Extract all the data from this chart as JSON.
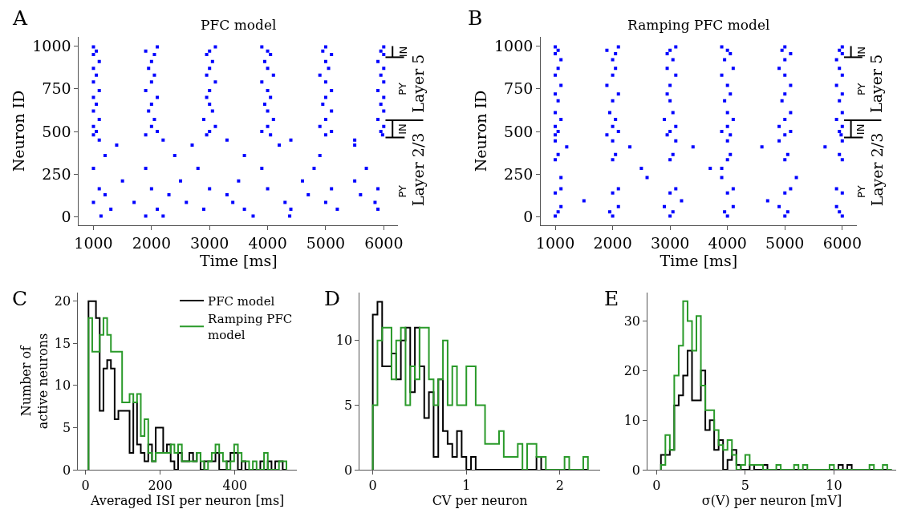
{
  "chart_data": [
    {
      "type": "scatter",
      "title": "PFC model",
      "xlabel": "Time [ms]",
      "ylabel": "Neuron ID",
      "xlim": [
        750,
        6250
      ],
      "ylim": [
        -50,
        1055
      ],
      "xticks": [
        1000,
        2000,
        3000,
        4000,
        5000,
        6000
      ],
      "yticks": [
        0,
        250,
        500,
        750,
        1000
      ],
      "marker": "square",
      "grid": false,
      "legend": false,
      "annotations": [
        "A",
        "IN",
        "PY",
        "IN",
        "PY",
        "Layer 5",
        "Layer 2/3"
      ],
      "series": [
        {
          "color": "#0000ff",
          "x": [
            1130,
            1900,
            2200,
            3750,
            4380
          ],
          "values": [
            5,
            5,
            5,
            5,
            5
          ]
        },
        {
          "color": "#0000ff",
          "x": [
            1300,
            2100,
            2900,
            3600,
            4400,
            5200,
            5900
          ],
          "values": [
            45,
            45,
            45,
            45,
            45,
            45,
            45
          ]
        },
        {
          "color": "#0000ff",
          "x": [
            1000,
            1700,
            2600,
            3400,
            4300,
            5000,
            5850
          ],
          "values": [
            85,
            85,
            85,
            85,
            85,
            85,
            85
          ]
        },
        {
          "color": "#0000ff",
          "x": [
            1200,
            2300,
            3300,
            4700,
            5600
          ],
          "values": [
            130,
            130,
            130,
            130,
            130
          ]
        },
        {
          "color": "#0000ff",
          "x": [
            1100,
            2000,
            3000,
            4000,
            5100,
            5900
          ],
          "values": [
            165,
            165,
            165,
            165,
            165,
            165
          ]
        },
        {
          "color": "#0000ff",
          "x": [
            1500,
            2500,
            3500,
            4600,
            5500
          ],
          "values": [
            210,
            210,
            210,
            210,
            210
          ]
        },
        {
          "color": "#0000ff",
          "x": [
            1000,
            1900,
            2800,
            3900,
            4800,
            5700
          ],
          "values": [
            285,
            285,
            285,
            285,
            285,
            285
          ]
        },
        {
          "color": "#0000ff",
          "x": [
            1200,
            2400,
            3600,
            4900
          ],
          "values": [
            360,
            360,
            360,
            360
          ]
        },
        {
          "color": "#0000ff",
          "x": [
            1400,
            2700,
            4200,
            5500
          ],
          "values": [
            420,
            420,
            420,
            420
          ]
        },
        {
          "color": "#0000ff",
          "x": [
            1100,
            2200,
            3300,
            4400,
            5500
          ],
          "values": [
            450,
            450,
            450,
            450,
            450
          ]
        },
        {
          "color": "#0000ff",
          "x": [
            1000,
            1900,
            2950,
            4050,
            5000,
            5980
          ],
          "values": [
            480,
            480,
            480,
            480,
            480,
            480
          ]
        },
        {
          "color": "#0000ff",
          "x": [
            1050,
            2100,
            3000,
            3900,
            5100,
            5950
          ],
          "values": [
            500,
            500,
            500,
            500,
            500,
            500
          ]
        },
        {
          "color": "#0000ff",
          "x": [
            1000,
            2000,
            3100,
            4000,
            4900,
            6000
          ],
          "values": [
            530,
            530,
            530,
            530,
            530,
            530
          ]
        },
        {
          "color": "#0000ff",
          "x": [
            1100,
            2050,
            2900,
            4100,
            5000,
            5900
          ],
          "values": [
            570,
            570,
            570,
            570,
            570,
            570
          ]
        },
        {
          "color": "#0000ff",
          "x": [
            1000,
            1950,
            3050,
            4000,
            5100,
            6000
          ],
          "values": [
            620,
            620,
            620,
            620,
            620,
            620
          ]
        },
        {
          "color": "#0000ff",
          "x": [
            1050,
            2000,
            3000,
            3950,
            4950,
            5950
          ],
          "values": [
            660,
            660,
            660,
            660,
            660,
            660
          ]
        },
        {
          "color": "#0000ff",
          "x": [
            1000,
            2100,
            2950,
            4050,
            5000,
            6000
          ],
          "values": [
            700,
            700,
            700,
            700,
            700,
            700
          ]
        },
        {
          "color": "#0000ff",
          "x": [
            1100,
            1900,
            3000,
            4000,
            5100,
            5900
          ],
          "values": [
            740,
            740,
            740,
            740,
            740,
            740
          ]
        },
        {
          "color": "#0000ff",
          "x": [
            1000,
            2000,
            3100,
            3900,
            5000,
            6000
          ],
          "values": [
            790,
            790,
            790,
            790,
            790,
            790
          ]
        },
        {
          "color": "#0000ff",
          "x": [
            1050,
            2050,
            2950,
            4100,
            4900,
            5950
          ],
          "values": [
            830,
            830,
            830,
            830,
            830,
            830
          ]
        },
        {
          "color": "#0000ff",
          "x": [
            1000,
            1950,
            3000,
            4000,
            5050,
            6000
          ],
          "values": [
            870,
            870,
            870,
            870,
            870,
            870
          ]
        },
        {
          "color": "#0000ff",
          "x": [
            1100,
            2000,
            3050,
            3950,
            5000,
            5900
          ],
          "values": [
            910,
            910,
            910,
            910,
            910,
            910
          ]
        },
        {
          "color": "#0000ff",
          "x": [
            1000,
            2050,
            2950,
            4050,
            5100,
            6000
          ],
          "values": [
            950,
            950,
            950,
            950,
            950,
            950
          ]
        },
        {
          "color": "#0000ff",
          "x": [
            1050,
            1900,
            3000,
            4000,
            4950,
            5950
          ],
          "values": [
            970,
            970,
            970,
            970,
            970,
            970
          ]
        },
        {
          "color": "#0000ff",
          "x": [
            1000,
            2100,
            3100,
            3900,
            5000,
            6000
          ],
          "values": [
            995,
            995,
            995,
            995,
            995,
            995
          ]
        }
      ]
    },
    {
      "type": "scatter",
      "title": "Ramping PFC model",
      "xlabel": "Time [ms]",
      "ylabel": "Neuron ID",
      "xlim": [
        750,
        6250
      ],
      "ylim": [
        -50,
        1055
      ],
      "xticks": [
        1000,
        2000,
        3000,
        4000,
        5000,
        6000
      ],
      "yticks": [
        0,
        250,
        500,
        750,
        1000
      ],
      "marker": "square",
      "grid": false,
      "legend": false,
      "annotations": [
        "B",
        "IN",
        "PY",
        "IN",
        "PY",
        "Layer 5",
        "Layer 2/3"
      ],
      "series": [
        {
          "color": "#0000ff",
          "x": [
            1000,
            2000,
            3000,
            4000,
            5000,
            6000
          ],
          "values": [
            5,
            5,
            5,
            5,
            5,
            5
          ]
        },
        {
          "color": "#0000ff",
          "x": [
            1050,
            1950,
            3050,
            3950,
            5050,
            5950
          ],
          "values": [
            30,
            30,
            30,
            30,
            30,
            30
          ]
        },
        {
          "color": "#0000ff",
          "x": [
            1100,
            2100,
            2900,
            4100,
            4900,
            5900
          ],
          "values": [
            60,
            60,
            60,
            60,
            60,
            60
          ]
        },
        {
          "color": "#0000ff",
          "x": [
            1500,
            3200,
            4700
          ],
          "values": [
            95,
            95,
            95
          ]
        },
        {
          "color": "#0000ff",
          "x": [
            1000,
            2000,
            3000,
            4000,
            5000,
            6000
          ],
          "values": [
            140,
            140,
            140,
            140,
            140,
            140
          ]
        },
        {
          "color": "#0000ff",
          "x": [
            1100,
            2100,
            3100,
            4100,
            5100,
            5900
          ],
          "values": [
            165,
            165,
            165,
            165,
            165,
            165
          ]
        },
        {
          "color": "#0000ff",
          "x": [
            1100,
            2600,
            3900,
            5200
          ],
          "values": [
            230,
            230,
            230,
            230
          ]
        },
        {
          "color": "#0000ff",
          "x": [
            2500,
            3700,
            3900
          ],
          "values": [
            285,
            285,
            285
          ]
        },
        {
          "color": "#0000ff",
          "x": [
            1000,
            2000,
            3000,
            4000,
            5000,
            6000
          ],
          "values": [
            335,
            335,
            335,
            335,
            335,
            335
          ]
        },
        {
          "color": "#0000ff",
          "x": [
            1050,
            2050,
            3050,
            4050,
            5050,
            5950
          ],
          "values": [
            365,
            365,
            365,
            365,
            365,
            365
          ]
        },
        {
          "color": "#0000ff",
          "x": [
            1200,
            2300,
            3400,
            4600,
            5700
          ],
          "values": [
            410,
            410,
            410,
            410,
            410
          ]
        },
        {
          "color": "#0000ff",
          "x": [
            1000,
            2000,
            3100,
            4000,
            4900,
            6000
          ],
          "values": [
            445,
            445,
            445,
            445,
            445,
            445
          ]
        },
        {
          "color": "#0000ff",
          "x": [
            1000,
            1900,
            2950,
            4050,
            5000,
            5980
          ],
          "values": [
            480,
            480,
            480,
            480,
            480,
            480
          ]
        },
        {
          "color": "#0000ff",
          "x": [
            1050,
            2100,
            3000,
            3900,
            5100,
            5950
          ],
          "values": [
            500,
            500,
            500,
            500,
            500,
            500
          ]
        },
        {
          "color": "#0000ff",
          "x": [
            1000,
            2000,
            3100,
            4000,
            4900,
            6000
          ],
          "values": [
            530,
            530,
            530,
            530,
            530,
            530
          ]
        },
        {
          "color": "#0000ff",
          "x": [
            1100,
            2050,
            2900,
            4100,
            5000,
            5900
          ],
          "values": [
            570,
            570,
            570,
            570,
            570,
            570
          ]
        },
        {
          "color": "#0000ff",
          "x": [
            1000,
            1950,
            3050,
            4000,
            5100,
            6000
          ],
          "values": [
            610,
            610,
            610,
            610,
            610,
            610
          ]
        },
        {
          "color": "#0000ff",
          "x": [
            1050,
            2000,
            3000,
            3950,
            4950,
            5950
          ],
          "values": [
            680,
            680,
            680,
            680,
            680,
            680
          ]
        },
        {
          "color": "#0000ff",
          "x": [
            1000,
            2100,
            2950,
            4050,
            5000,
            6000
          ],
          "values": [
            720,
            720,
            720,
            720,
            720,
            720
          ]
        },
        {
          "color": "#0000ff",
          "x": [
            1100,
            1900,
            3000,
            4000,
            5100,
            5900
          ],
          "values": [
            770,
            770,
            770,
            770,
            770,
            770
          ]
        },
        {
          "color": "#0000ff",
          "x": [
            1000,
            2000,
            3100,
            3900,
            5000,
            6000
          ],
          "values": [
            830,
            830,
            830,
            830,
            830,
            830
          ]
        },
        {
          "color": "#0000ff",
          "x": [
            1050,
            2050,
            2950,
            4100,
            4900,
            5950
          ],
          "values": [
            870,
            870,
            870,
            870,
            870,
            870
          ]
        },
        {
          "color": "#0000ff",
          "x": [
            1100,
            2000,
            3050,
            3950,
            5000,
            5900
          ],
          "values": [
            920,
            920,
            920,
            920,
            920,
            920
          ]
        },
        {
          "color": "#0000ff",
          "x": [
            1000,
            2050,
            2950,
            4050,
            5100,
            6000
          ],
          "values": [
            955,
            955,
            955,
            955,
            955,
            955
          ]
        },
        {
          "color": "#0000ff",
          "x": [
            1050,
            1900,
            3000,
            4000,
            4950,
            5950
          ],
          "values": [
            975,
            975,
            975,
            975,
            975,
            975
          ]
        },
        {
          "color": "#0000ff",
          "x": [
            1000,
            2100,
            3100,
            3900,
            5000,
            6000
          ],
          "values": [
            995,
            995,
            995,
            995,
            995,
            995
          ]
        }
      ]
    },
    {
      "type": "histogram",
      "xlabel": "Averaged ISI per neuron [ms]",
      "ylabel": "Number of\nactive neurons",
      "xlim": [
        -20,
        566
      ],
      "ylim": [
        0,
        21
      ],
      "xticks": [
        0,
        200,
        400
      ],
      "yticks": [
        0,
        5,
        10,
        15,
        20
      ],
      "grid": false,
      "legend": "top right",
      "annotations": [
        "C"
      ],
      "bins": [
        8,
        18,
        28,
        38,
        48,
        58,
        68,
        78,
        88,
        98,
        108,
        118,
        128,
        138,
        148,
        158,
        168,
        178,
        188,
        198,
        208,
        218,
        228,
        238,
        248,
        258,
        268,
        278,
        288,
        298,
        308,
        318,
        328,
        338,
        348,
        358,
        368,
        378,
        388,
        398,
        408,
        418,
        428,
        438,
        448,
        458,
        468,
        478,
        488,
        498,
        508,
        518,
        528,
        538
      ],
      "series": [
        {
          "name": "PFC model",
          "color": "#000000",
          "values": [
            20,
            20,
            18,
            7,
            12,
            13,
            12,
            6,
            7,
            7,
            7,
            2,
            8,
            3,
            2,
            1,
            3,
            1,
            5,
            5,
            2,
            3,
            1,
            0,
            2,
            1,
            1,
            2,
            1,
            2,
            0,
            1,
            1,
            1,
            2,
            0,
            0,
            1,
            2,
            2,
            0,
            1,
            0,
            0,
            0,
            0,
            1,
            0,
            1,
            0,
            1,
            1,
            0
          ]
        },
        {
          "name": "Ramping PFC\nmodel",
          "color": "#2a9a2a",
          "values": [
            18,
            14,
            14,
            16,
            18,
            16,
            14,
            14,
            14,
            8,
            8,
            9,
            8,
            9,
            4,
            6,
            2,
            1,
            2,
            2,
            2,
            2,
            3,
            2,
            3,
            1,
            1,
            1,
            1,
            2,
            1,
            0,
            1,
            2,
            3,
            2,
            1,
            0,
            1,
            3,
            2,
            1,
            1,
            0,
            1,
            0,
            0,
            2,
            0,
            0,
            0,
            1,
            1
          ]
        }
      ]
    },
    {
      "type": "histogram",
      "xlabel": "CV per neuron",
      "xlim": [
        -0.14,
        2.43
      ],
      "ylim": [
        0,
        13.7
      ],
      "xticks": [
        0,
        1,
        2
      ],
      "yticks": [
        0,
        5,
        10
      ],
      "grid": false,
      "legend": false,
      "annotations": [
        "D"
      ],
      "bins": [
        0,
        0.05,
        0.1,
        0.15,
        0.2,
        0.25,
        0.3,
        0.35,
        0.4,
        0.45,
        0.5,
        0.55,
        0.6,
        0.65,
        0.7,
        0.75,
        0.8,
        0.85,
        0.9,
        0.95,
        1,
        1.05,
        1.1,
        1.15,
        1.2,
        1.25,
        1.3,
        1.35,
        1.4,
        1.45,
        1.5,
        1.55,
        1.6,
        1.65,
        1.7,
        1.75,
        1.8,
        1.85,
        1.9,
        1.95,
        2,
        2.05,
        2.1,
        2.15,
        2.2,
        2.25,
        2.3
      ],
      "series": [
        {
          "color": "#000000",
          "values": [
            12,
            13,
            8,
            8,
            9,
            7,
            10,
            11,
            6,
            11,
            8,
            4,
            6,
            1,
            7,
            3,
            2,
            1,
            3,
            1,
            0,
            1,
            0,
            0,
            0,
            0,
            0,
            0,
            0,
            0,
            0,
            0,
            0,
            0,
            0,
            1,
            0,
            0,
            0,
            0,
            0,
            0,
            0,
            0,
            0,
            0
          ]
        },
        {
          "color": "#2a9a2a",
          "values": [
            5,
            10,
            11,
            11,
            7,
            10,
            11,
            5,
            8,
            7,
            11,
            11,
            7,
            5,
            7,
            10,
            5,
            8,
            5,
            5,
            8,
            8,
            5,
            5,
            2,
            2,
            2,
            3,
            1,
            1,
            1,
            2,
            0,
            2,
            2,
            1,
            1,
            0,
            0,
            0,
            0,
            1,
            0,
            0,
            0,
            1
          ]
        }
      ]
    },
    {
      "type": "histogram",
      "xlabel": "σ(V) per neuron [mV]",
      "xlim": [
        -0.5,
        13.5
      ],
      "ylim": [
        0,
        35.7
      ],
      "xticks": [
        0,
        5,
        10
      ],
      "yticks": [
        0,
        10,
        20,
        30
      ],
      "grid": false,
      "legend": false,
      "annotations": [
        "E"
      ],
      "bins": [
        0.25,
        0.5,
        0.75,
        1,
        1.25,
        1.5,
        1.75,
        2,
        2.25,
        2.5,
        2.75,
        3,
        3.25,
        3.5,
        3.75,
        4,
        4.25,
        4.5,
        4.75,
        5,
        5.25,
        5.5,
        5.75,
        6,
        6.25,
        6.5,
        6.75,
        7,
        7.25,
        7.5,
        7.75,
        8,
        8.25,
        8.5,
        8.75,
        9,
        9.25,
        9.5,
        9.75,
        10,
        10.25,
        10.5,
        10.75,
        11,
        11.25,
        11.5,
        11.75,
        12,
        12.25,
        12.5,
        12.75,
        13,
        13.25
      ],
      "series": [
        {
          "color": "#000000",
          "values": [
            3,
            3,
            4,
            13,
            15,
            19,
            24,
            14,
            14,
            20,
            8,
            10,
            4,
            6,
            0,
            2,
            4,
            1,
            0,
            0,
            1,
            0,
            0,
            1,
            0,
            0,
            0,
            0,
            0,
            0,
            0,
            0,
            0,
            0,
            0,
            0,
            0,
            0,
            0,
            0,
            1,
            0,
            1,
            0,
            0,
            0,
            0,
            0,
            0,
            0,
            0,
            0
          ]
        },
        {
          "color": "#2a9a2a",
          "values": [
            1,
            7,
            4,
            19,
            25,
            34,
            30,
            24,
            31,
            17,
            12,
            12,
            8,
            5,
            4,
            6,
            3,
            0,
            1,
            3,
            1,
            1,
            1,
            0,
            0,
            0,
            1,
            0,
            0,
            0,
            1,
            0,
            1,
            0,
            0,
            0,
            0,
            0,
            1,
            0,
            0,
            0,
            0,
            0,
            0,
            0,
            0,
            1,
            0,
            0,
            1,
            0
          ]
        }
      ]
    }
  ]
}
